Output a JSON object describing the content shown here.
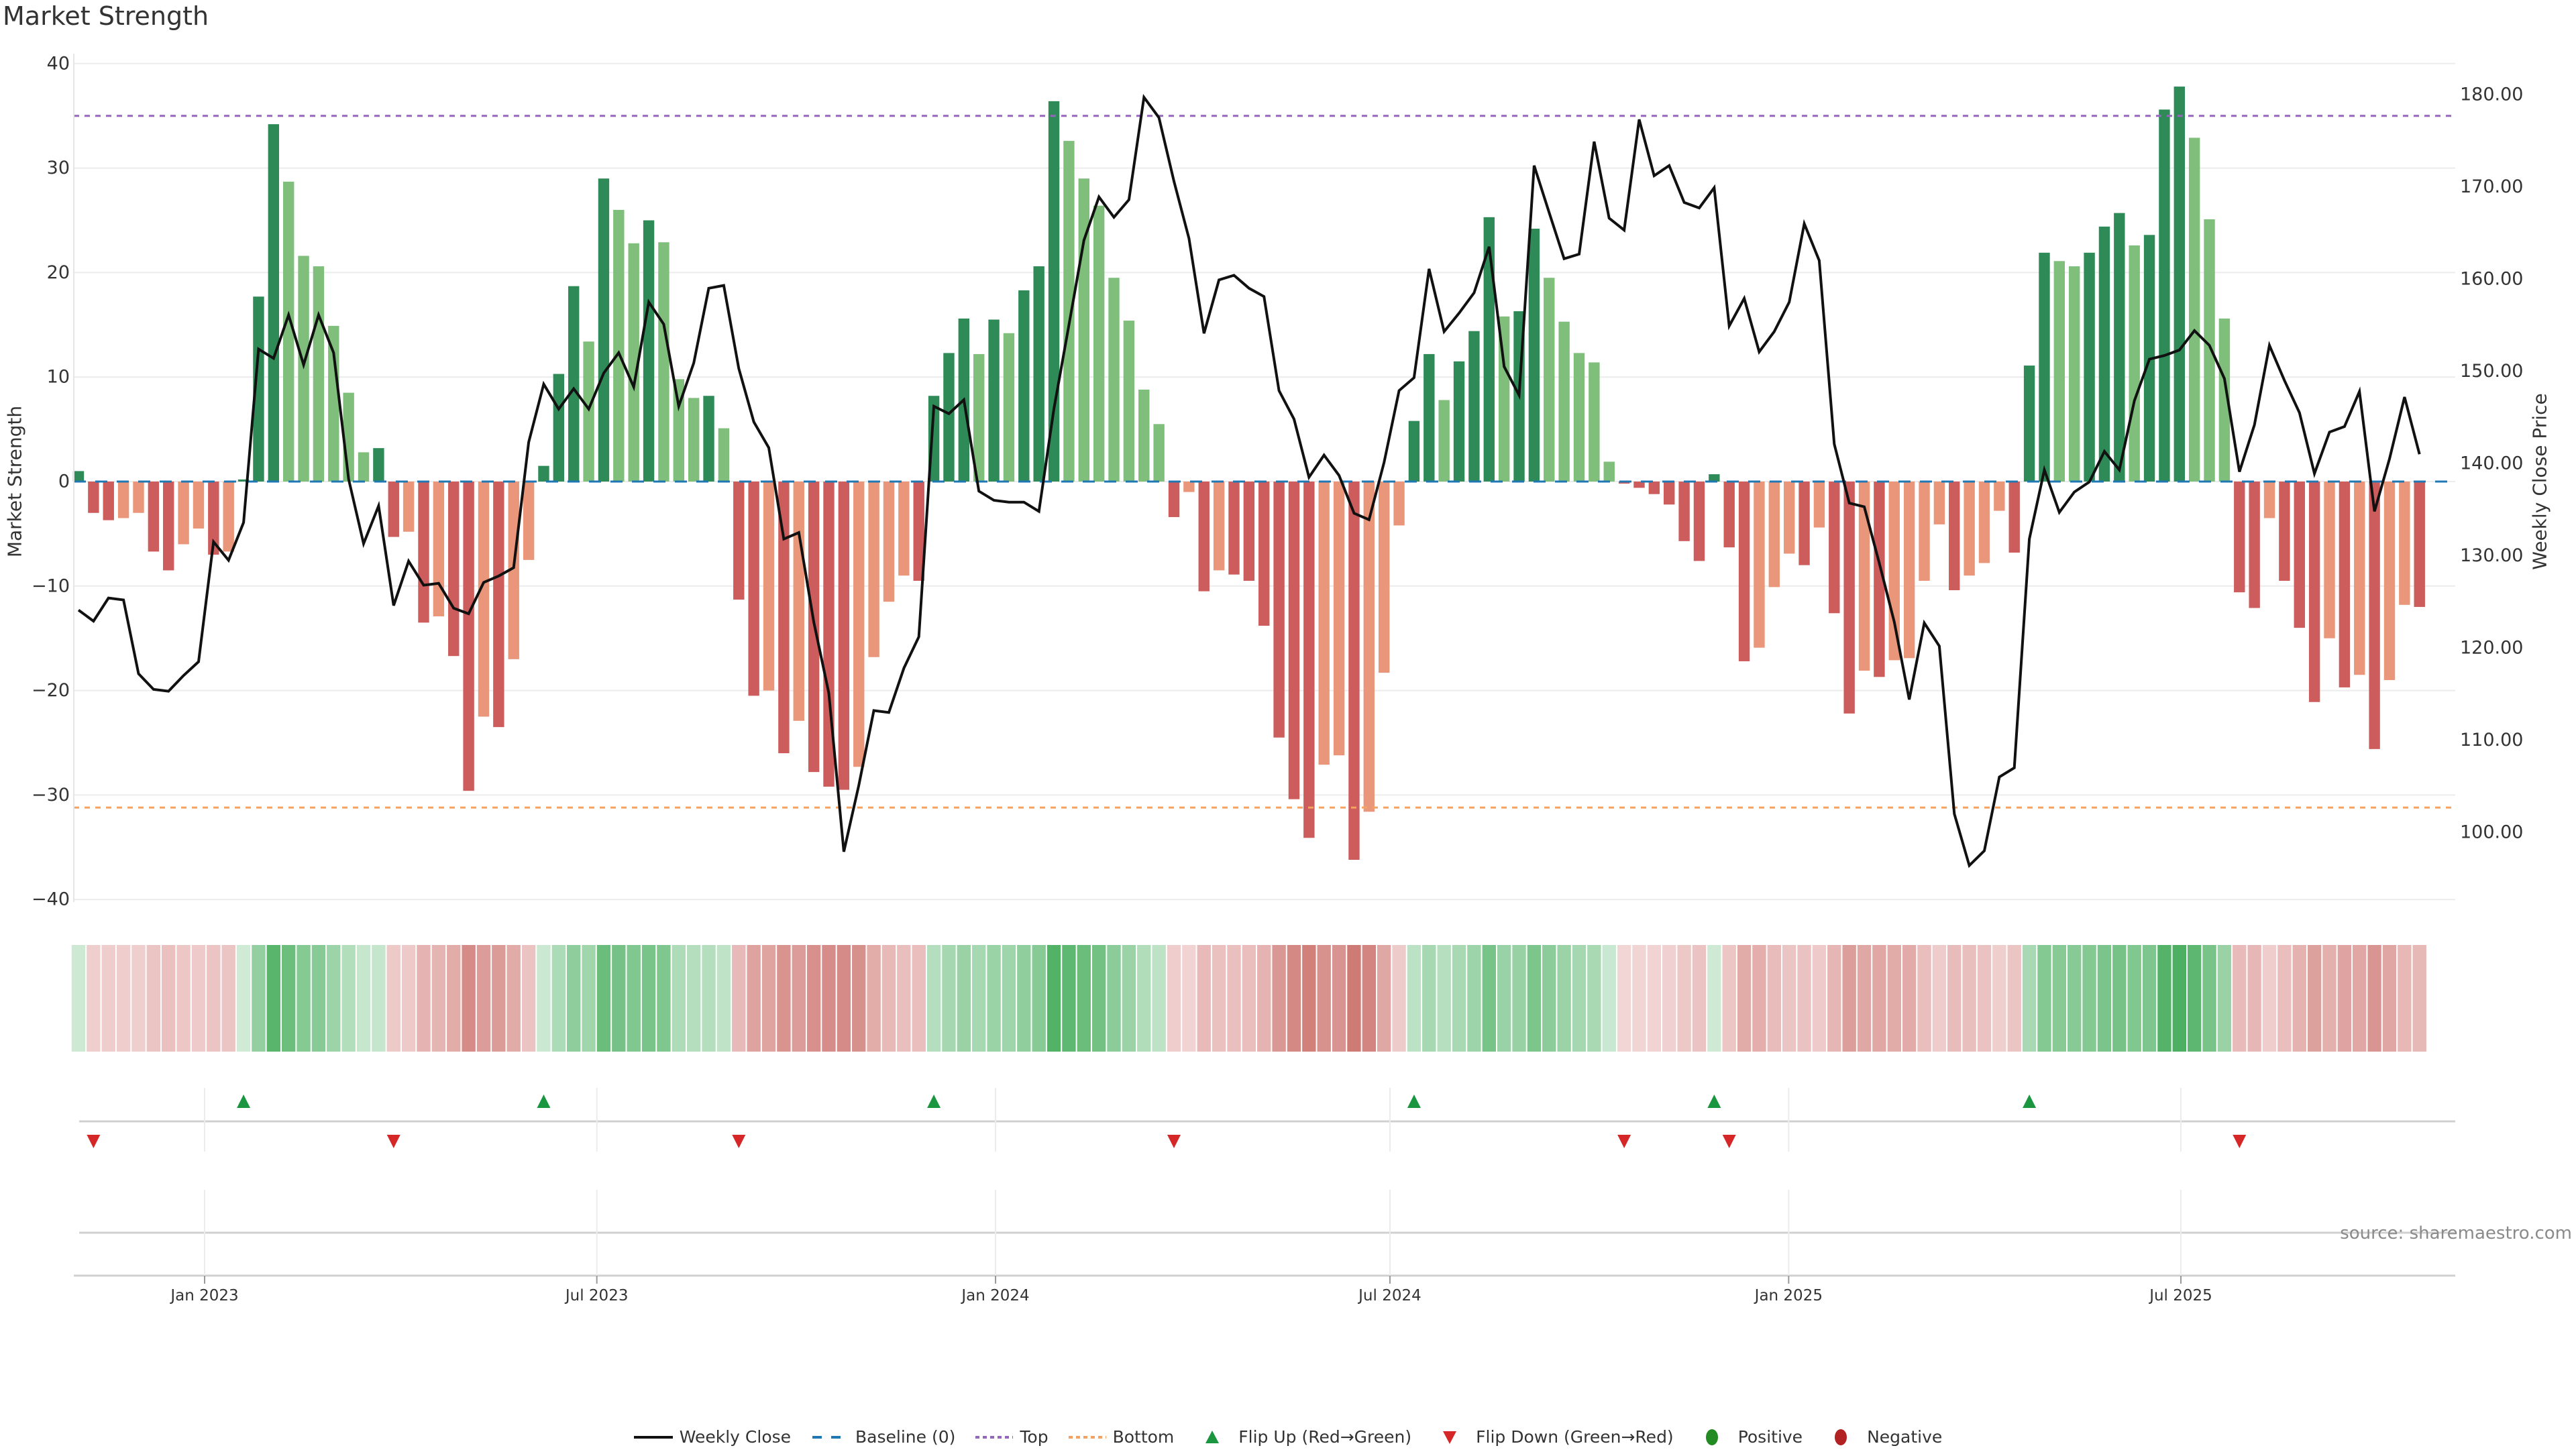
{
  "title": "Market Strength",
  "source": "source: sharemaestro.com",
  "colors": {
    "up_strong": "#2e8b57",
    "up_weak": "#7fbf7b",
    "down_strong": "#cd5c5c",
    "down_weak": "#e9967a",
    "line": "#111111",
    "baseline": "#1f77b4",
    "top": "#9467bd",
    "bottom": "#f4a261",
    "flip_up": "#1a9641",
    "flip_down": "#d62728",
    "positive": "#228b22",
    "negative": "#b22222"
  },
  "legend": [
    {
      "label": "Weekly Close",
      "kind": "line"
    },
    {
      "label": "Baseline (0)",
      "kind": "baseline"
    },
    {
      "label": "Top",
      "kind": "top"
    },
    {
      "label": "Bottom",
      "kind": "bottom"
    },
    {
      "label": "Flip Up (Red→Green)",
      "kind": "flip_up"
    },
    {
      "label": "Flip Down (Green→Red)",
      "kind": "flip_down"
    },
    {
      "label": "Positive",
      "kind": "positive"
    },
    {
      "label": "Negative",
      "kind": "negative"
    }
  ],
  "chart_data": {
    "type": "bar",
    "title": "Market Strength",
    "ylabel": "Market Strength",
    "y2label": "Weekly Close Price",
    "ylim": [
      -40,
      40
    ],
    "y2lim": [
      90,
      183
    ],
    "grid": true,
    "legend_position": "bottom",
    "top_level": 35,
    "bottom_level": -31.2,
    "baseline": 0,
    "start_week": "2022-11-04",
    "frequency": "weekly",
    "left_ticks": [
      "40",
      "30",
      "20",
      "10",
      "0",
      "−10",
      "−20",
      "−30",
      "−40"
    ],
    "left_tick_values": [
      40,
      30,
      20,
      10,
      0,
      -10,
      -20,
      -30,
      -40
    ],
    "right_ticks": [
      "180.00",
      "170.00",
      "160.00",
      "150.00",
      "140.00",
      "130.00",
      "120.00",
      "110.00",
      "100.00"
    ],
    "right_tick_values": [
      180,
      170,
      160,
      150,
      140,
      130,
      120,
      110,
      100
    ],
    "date_ticks": [
      {
        "label": "Jan 2023",
        "date": "2023-01-01"
      },
      {
        "label": "Jul 2023",
        "date": "2023-07-01"
      },
      {
        "label": "Jan 2024",
        "date": "2024-01-01"
      },
      {
        "label": "Jul 2024",
        "date": "2024-07-01"
      },
      {
        "label": "Jan 2025",
        "date": "2025-01-01"
      },
      {
        "label": "Jul 2025",
        "date": "2025-07-01"
      }
    ],
    "series": [
      {
        "name": "Market Strength",
        "type": "bar",
        "values": [
          1.0,
          -3,
          -3.7,
          -3.5,
          -3,
          -6.7,
          -8.5,
          -6,
          -4.5,
          -7,
          -6.7,
          0.2,
          17.7,
          34.2,
          28.7,
          21.6,
          20.6,
          14.9,
          8.5,
          2.8,
          3.2,
          -5.3,
          -4.8,
          -13.5,
          -12.9,
          -16.7,
          -29.6,
          -22.5,
          -23.5,
          -17,
          -7.5,
          1.5,
          10.3,
          18.7,
          13.4,
          29,
          26,
          22.8,
          25,
          22.9,
          9.8,
          8,
          8.2,
          5.1,
          -11.3,
          -20.5,
          -20,
          -26,
          -22.9,
          -27.8,
          -29.2,
          -29.5,
          -27.3,
          -16.8,
          -11.5,
          -9,
          -9.5,
          8.2,
          12.3,
          15.6,
          12.2,
          15.5,
          14.2,
          18.3,
          20.6,
          36.4,
          32.6,
          29,
          26.4,
          19.5,
          15.4,
          8.8,
          5.5,
          -3.4,
          -1,
          -10.5,
          -8.5,
          -8.9,
          -9.5,
          -13.8,
          -24.5,
          -30.4,
          -34.1,
          -27.1,
          -26.2,
          -36.2,
          -31.6,
          -18.3,
          -4.2,
          5.8,
          12.2,
          7.8,
          11.5,
          14.4,
          25.3,
          15.8,
          16.3,
          24.2,
          19.5,
          15.3,
          12.3,
          11.4,
          1.9,
          -0.2,
          -0.6,
          -1.2,
          -2.2,
          -5.7,
          -7.6,
          0.7,
          -6.3,
          -17.2,
          -15.9,
          -10.1,
          -6.9,
          -8,
          -4.4,
          -12.6,
          -22.2,
          -18.1,
          -18.7,
          -17.1,
          -16.9,
          -9.5,
          -4.1,
          -10.4,
          -9,
          -7.8,
          -2.8,
          -6.8,
          11.1,
          21.9,
          21.1,
          20.6,
          21.9,
          24.4,
          25.7,
          22.6,
          23.6,
          35.6,
          37.8,
          32.9,
          25.1,
          15.6,
          -10.6,
          -12.1,
          -3.5,
          -9.5,
          -14,
          -21.1,
          -15,
          -19.7,
          -18.5,
          -25.6,
          -19,
          -11.8,
          -12
        ]
      },
      {
        "name": "Weekly Close",
        "type": "line",
        "axis": "right",
        "values": [
          124.1,
          122.9,
          125.4,
          125.2,
          117.2,
          115.5,
          115.3,
          117.0,
          118.5,
          131.5,
          129.5,
          133.6,
          152.4,
          151.4,
          156.1,
          150.7,
          156.1,
          152.0,
          138.3,
          131.3,
          135.4,
          124.6,
          129.4,
          126.8,
          127.0,
          124.3,
          123.7,
          127.1,
          127.8,
          128.7,
          142.3,
          148.6,
          145.9,
          148.1,
          145.9,
          149.8,
          152.0,
          148.3,
          157.5,
          155.1,
          146.2,
          150.9,
          159.0,
          159.3,
          150.3,
          144.5,
          141.7,
          131.8,
          132.5,
          122.8,
          115.1,
          97.9,
          105.1,
          113.2,
          113.0,
          117.8,
          121.2,
          146.2,
          145.4,
          146.9,
          137.0,
          136.0,
          135.8,
          135.8,
          134.8,
          145.9,
          155.0,
          164.2,
          168.9,
          166.7,
          168.6,
          179.7,
          177.5,
          170.6,
          164.4,
          154.1,
          159.9,
          160.4,
          159.0,
          158.1,
          147.9,
          144.8,
          138.5,
          140.9,
          138.7,
          134.6,
          133.9,
          140.1,
          147.9,
          149.3,
          161.1,
          154.3,
          156.3,
          158.5,
          163.5,
          150.5,
          147.4,
          172.3,
          167.2,
          162.2,
          162.7,
          174.9,
          166.6,
          165.3,
          177.3,
          171.2,
          172.3,
          168.3,
          167.7,
          169.9,
          154.9,
          157.9,
          152.1,
          154.3,
          157.5,
          166.0,
          162.0,
          142.1,
          135.7,
          135.3,
          129.2,
          122.8,
          114.4,
          122.7,
          120.2,
          102.0,
          96.4,
          98.0,
          106.0,
          107.0,
          131.8,
          139.3,
          134.7,
          136.9,
          138.0,
          141.3,
          139.3,
          146.8,
          151.3,
          151.7,
          152.3,
          154.4,
          152.8,
          149.2,
          139.1,
          144.2,
          152.8,
          149.0,
          145.5,
          138.9,
          143.4,
          144.0,
          147.8,
          134.8,
          140.5,
          147.2,
          141.0
        ]
      }
    ]
  }
}
